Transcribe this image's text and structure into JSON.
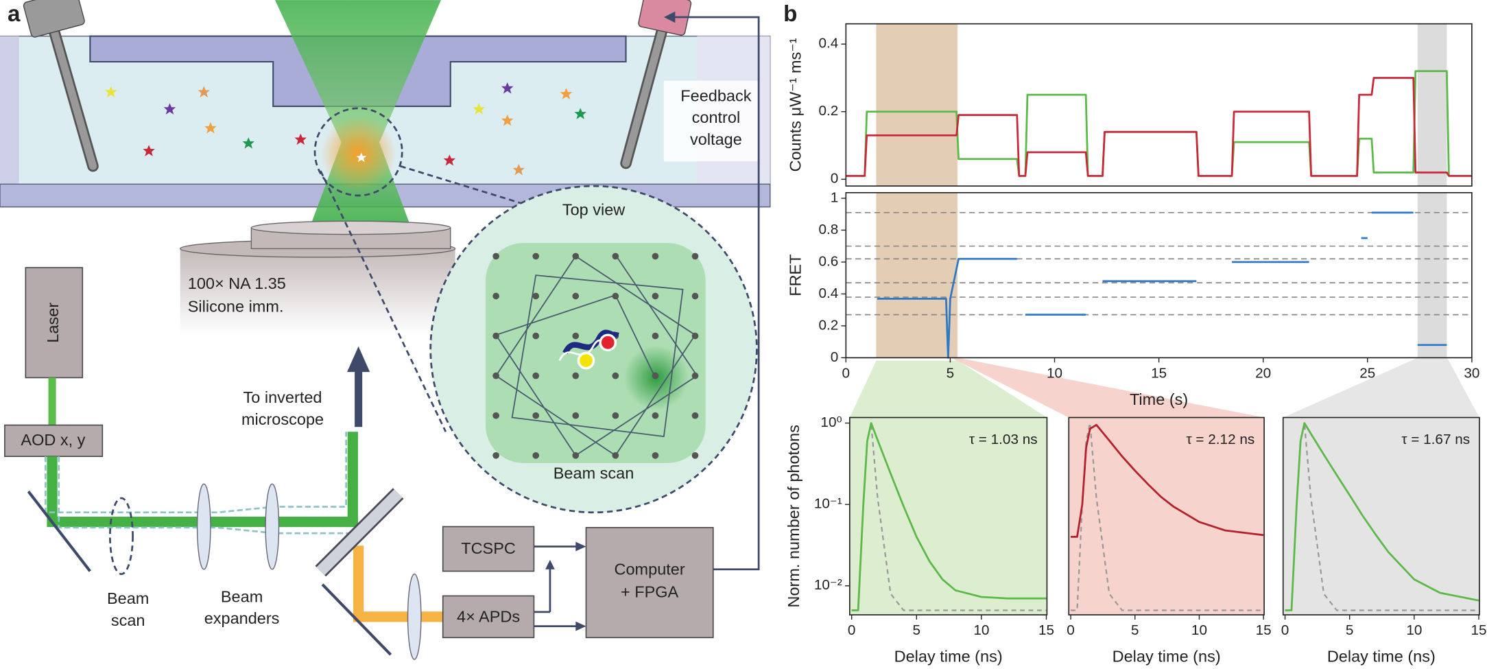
{
  "panel_labels": [
    "a",
    "b"
  ],
  "diagram": {
    "feedback": [
      "Feedback",
      "control",
      "voltage"
    ],
    "top_view": "Top view",
    "zoom_scan": "Beam scan",
    "objective": [
      "100× NA 1.35",
      "Silicone imm."
    ],
    "laser": "Laser",
    "aod": "AOD x, y",
    "to_microscope": [
      "To inverted",
      "microscope"
    ],
    "beam_scan": [
      "Beam",
      "scan"
    ],
    "expanders": [
      "Beam",
      "expanders"
    ],
    "tcspc": "TCSPC",
    "apds": "4× APDs",
    "computer": [
      "Computer",
      "+ FPGA"
    ]
  },
  "chart_data": [
    {
      "type": "line",
      "y_label": "Counts μW⁻¹ ms⁻¹",
      "xlim": [
        0,
        30
      ],
      "ylim": [
        -0.02,
        0.46
      ],
      "yticks": [
        0,
        0.2,
        0.4
      ],
      "highlights": [
        {
          "x": [
            1.45,
            5.35
          ],
          "color": "#e3cdb4"
        },
        {
          "x": [
            27.4,
            28.8
          ],
          "color": "#dcdcdc"
        }
      ],
      "x": [
        0,
        0.9,
        1.0,
        5.3,
        5.4,
        8.2,
        8.3,
        8.6,
        8.7,
        11.5,
        11.6,
        12.3,
        12.4,
        16.8,
        16.9,
        18.5,
        18.6,
        22.2,
        22.3,
        24.5,
        24.6,
        25.2,
        25.3,
        27.2,
        27.3,
        28.8,
        28.9,
        30
      ],
      "series": [
        {
          "color": "#5bb947",
          "values": [
            0.01,
            0.01,
            0.2,
            0.2,
            0.06,
            0.06,
            0.01,
            0.01,
            0.25,
            0.25,
            0.01,
            0.01,
            0.14,
            0.14,
            0.01,
            0.01,
            0.11,
            0.11,
            0.01,
            0.01,
            0.12,
            0.12,
            0.02,
            0.02,
            0.32,
            0.32,
            0.01,
            0.01
          ]
        },
        {
          "color": "#c8283a",
          "values": [
            0.01,
            0.01,
            0.13,
            0.13,
            0.19,
            0.19,
            0.01,
            0.01,
            0.08,
            0.08,
            0.01,
            0.01,
            0.14,
            0.14,
            0.01,
            0.01,
            0.2,
            0.2,
            0.01,
            0.01,
            0.25,
            0.25,
            0.3,
            0.3,
            0.02,
            0.02,
            0.01,
            0.01
          ]
        }
      ]
    },
    {
      "type": "line",
      "y_label": "FRET",
      "x_label": "Time (s)",
      "xlim": [
        0,
        30
      ],
      "xticks": [
        0,
        5,
        10,
        15,
        20,
        25,
        30
      ],
      "ylim": [
        0,
        1.035
      ],
      "yticks": [
        0,
        0.2,
        0.4,
        0.6,
        0.8,
        1
      ],
      "levels": [
        0.27,
        0.38,
        0.47,
        0.62,
        0.7,
        0.91
      ],
      "highlights": [
        {
          "x": [
            1.45,
            5.35
          ],
          "color": "#e3cdb4"
        },
        {
          "x": [
            27.4,
            28.8
          ],
          "color": "#dcdcdc"
        }
      ],
      "x": [
        1.5,
        4.8,
        4.9,
        5.0,
        5.4,
        8.2,
        8.4,
        8.6,
        11.5,
        11.9,
        12.3,
        16.8,
        17.6,
        18.5,
        22.2,
        23.4,
        24.7,
        25.0,
        25.1,
        25.2,
        27.2,
        27.3,
        27.4,
        28.8
      ],
      "series": [
        {
          "color": "#2f78c4",
          "values": [
            0.37,
            0.37,
            0,
            0.37,
            0.62,
            0.62,
            null,
            0.27,
            0.27,
            null,
            0.48,
            0.48,
            null,
            0.6,
            0.6,
            null,
            0.75,
            0.75,
            null,
            0.91,
            0.91,
            null,
            0.08,
            0.08
          ]
        }
      ]
    },
    {
      "type": "line",
      "log_y": true,
      "y_label": "Norm. number of photons",
      "x_label": "Delay time (ns)",
      "annotation": "τ = 1.03 ns",
      "background": "#dcedd0",
      "xlim": [
        -0.15,
        15.05
      ],
      "xticks": [
        0,
        5,
        10,
        15
      ],
      "ylim": [
        0.0044,
        1.17
      ],
      "yticks": [
        {
          "value": 1,
          "label": "10⁰"
        },
        {
          "value": 0.1,
          "label": "10⁻¹"
        },
        {
          "value": 0.01,
          "label": "10⁻²"
        }
      ],
      "x": [
        0,
        0.5,
        0.9,
        1.2,
        1.5,
        2,
        3,
        4,
        5,
        6,
        7,
        8,
        10,
        12,
        15
      ],
      "series": [
        {
          "color": "#999999",
          "dash": true,
          "values": [
            0.005,
            0.005,
            0.1,
            0.6,
            1,
            0.12,
            0.008,
            0.005,
            0.005,
            0.005,
            0.005,
            0.005,
            0.005,
            0.005,
            0.005
          ]
        },
        {
          "color": "#5bb947",
          "values": [
            0.005,
            0.005,
            0.1,
            0.6,
            1,
            0.62,
            0.24,
            0.095,
            0.04,
            0.02,
            0.012,
            0.0088,
            0.0073,
            0.007,
            0.007
          ]
        }
      ]
    },
    {
      "type": "line",
      "log_y": true,
      "x_label": "Delay time (ns)",
      "annotation": "τ = 2.12 ns",
      "background": "#f6d3cc",
      "xlim": [
        -0.15,
        15.05
      ],
      "xticks": [
        0,
        5,
        10,
        15
      ],
      "ylim": [
        0.0044,
        1.17
      ],
      "x": [
        0,
        0.5,
        0.9,
        1.2,
        1.5,
        2,
        3,
        4,
        5,
        6,
        7,
        8,
        10,
        12,
        15
      ],
      "series": [
        {
          "color": "#999999",
          "dash": true,
          "values": [
            0.005,
            0.005,
            0.1,
            0.6,
            1,
            0.12,
            0.008,
            0.005,
            0.005,
            0.005,
            0.005,
            0.005,
            0.005,
            0.005,
            0.005
          ]
        },
        {
          "color": "#b4202e",
          "values": [
            0.04,
            0.04,
            0.1,
            0.5,
            0.85,
            0.95,
            0.61,
            0.39,
            0.26,
            0.178,
            0.125,
            0.094,
            0.061,
            0.048,
            0.042
          ]
        }
      ]
    },
    {
      "type": "line",
      "log_y": true,
      "x_label": "Delay time (ns)",
      "annotation": "τ = 1.67 ns",
      "background": "#e4e4e4",
      "xlim": [
        -0.15,
        15.05
      ],
      "xticks": [
        0,
        5,
        10,
        15
      ],
      "ylim": [
        0.0044,
        1.17
      ],
      "x": [
        0,
        0.5,
        0.9,
        1.2,
        1.5,
        2,
        3,
        4,
        5,
        6,
        7,
        8,
        10,
        12,
        15
      ],
      "series": [
        {
          "color": "#999999",
          "dash": true,
          "values": [
            0.005,
            0.005,
            0.1,
            0.6,
            1,
            0.12,
            0.008,
            0.005,
            0.005,
            0.005,
            0.005,
            0.005,
            0.005,
            0.005,
            0.005
          ]
        },
        {
          "color": "#5bb947",
          "values": [
            0.005,
            0.005,
            0.1,
            0.6,
            1,
            0.74,
            0.41,
            0.23,
            0.13,
            0.073,
            0.043,
            0.026,
            0.012,
            0.0082,
            0.0066
          ]
        }
      ]
    }
  ]
}
